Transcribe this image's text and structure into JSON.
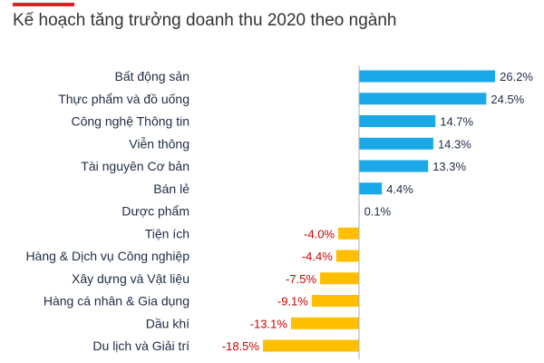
{
  "header": {
    "title": "Kế hoạch tăng trưởng doanh thu 2020 theo ngành"
  },
  "colors": {
    "positive": "#1aa9e8",
    "negative": "#ffbf00",
    "accent": "#e31e24",
    "positive_text": "#1f2a44",
    "negative_text": "#cc0000"
  },
  "chart_data": {
    "type": "bar",
    "orientation": "horizontal",
    "title": "Kế hoạch tăng trưởng doanh thu 2020 theo ngành",
    "categories": [
      "Bất động sản",
      "Thực phẩm và đồ uống",
      "Công nghệ Thông tin",
      "Viễn thông",
      "Tài nguyên Cơ bản",
      "Bán lẻ",
      "Dược phẩm",
      "Tiện ích",
      "Hàng & Dịch vụ Công nghiệp",
      "Xây dựng và Vật liệu",
      "Hàng cá nhân & Gia dụng",
      "Dầu khí",
      "Du lịch và Giải trí"
    ],
    "values": [
      26.2,
      24.5,
      14.7,
      14.3,
      13.3,
      4.4,
      0.1,
      -4.0,
      -4.4,
      -7.5,
      -9.1,
      -13.1,
      -18.5
    ],
    "value_labels": [
      "26.2%",
      "24.5%",
      "14.7%",
      "14.3%",
      "13.3%",
      "4.4%",
      "0.1%",
      "-4.0%",
      "-4.4%",
      "-7.5%",
      "-9.1%",
      "-13.1%",
      "-18.5%"
    ],
    "xlim": [
      -20,
      30
    ],
    "grid": false,
    "legend": "none"
  }
}
